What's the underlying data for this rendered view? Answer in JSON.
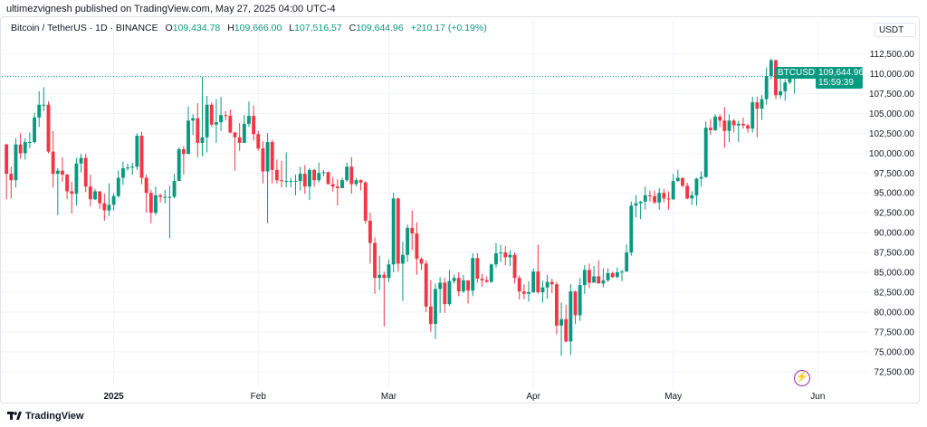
{
  "publisher": "ultimezvignesh published on TradingView.com, May 27, 2025 04:00 UTC-4",
  "legend": {
    "symbol": "Bitcoin / TetherUS · 1D · BINANCE",
    "o_label": "O",
    "o": "109,434.78",
    "h_label": "H",
    "h": "109,666.00",
    "l_label": "L",
    "l": "107,516.57",
    "c_label": "C",
    "c": "109,644.96",
    "change": "+210.17 (+0.19%)"
  },
  "currency": "USDT",
  "last_price": {
    "symbol": "BTCUSDT",
    "price": "109,644.96",
    "countdown": "15:59:39",
    "value": 109644.96
  },
  "logo": "TradingView",
  "icons": {
    "alert": "lightning-icon",
    "logo": "tradingview-logo-icon"
  },
  "colors": {
    "up": "#089981",
    "down": "#f23645",
    "grid": "#f0f3fa",
    "text": "#131722"
  },
  "chart_data": {
    "type": "candlestick",
    "grid": true,
    "ylim": [
      71000,
      114500
    ],
    "y_ticks": [
      "72,500.00",
      "75,000.00",
      "77,500.00",
      "80,000.00",
      "82,500.00",
      "85,000.00",
      "87,500.00",
      "90,000.00",
      "92,500.00",
      "95,000.00",
      "97,500.00",
      "100,000.00",
      "102,500.00",
      "105,000.00",
      "107,500.00",
      "110,000.00",
      "112,500.00"
    ],
    "x_ticks": [
      {
        "label": "2025",
        "date": "2025-01-01",
        "bold": true
      },
      {
        "label": "Feb",
        "date": "2025-02-01"
      },
      {
        "label": "Mar",
        "date": "2025-03-01"
      },
      {
        "label": "Apr",
        "date": "2025-04-01"
      },
      {
        "label": "May",
        "date": "2025-05-01"
      },
      {
        "label": "Jun",
        "date": "2025-06-01"
      }
    ],
    "xlim": [
      "2024-12-08",
      "2025-06-12"
    ],
    "columns": [
      "date",
      "open",
      "high",
      "low",
      "close"
    ],
    "ohlc": [
      [
        "2024-12-09",
        101100,
        101200,
        94200,
        97400
      ],
      [
        "2024-12-10",
        97400,
        98300,
        94300,
        96600
      ],
      [
        "2024-12-11",
        96600,
        101900,
        95700,
        101100
      ],
      [
        "2024-12-12",
        101100,
        102500,
        99300,
        100000
      ],
      [
        "2024-12-13",
        100000,
        101900,
        99200,
        101400
      ],
      [
        "2024-12-14",
        101400,
        102600,
        100600,
        101400
      ],
      [
        "2024-12-15",
        101400,
        105100,
        101200,
        104500
      ],
      [
        "2024-12-16",
        104500,
        107800,
        103300,
        106100
      ],
      [
        "2024-12-17",
        106100,
        108300,
        105300,
        106100
      ],
      [
        "2024-12-18",
        106100,
        106500,
        100000,
        100200
      ],
      [
        "2024-12-19",
        100200,
        102800,
        95700,
        97400
      ],
      [
        "2024-12-20",
        97400,
        98100,
        92200,
        97800
      ],
      [
        "2024-12-21",
        97800,
        99500,
        96400,
        97300
      ],
      [
        "2024-12-22",
        97300,
        97400,
        94200,
        95200
      ],
      [
        "2024-12-23",
        95200,
        96400,
        92400,
        94900
      ],
      [
        "2024-12-24",
        94900,
        99400,
        93400,
        98700
      ],
      [
        "2024-12-25",
        98700,
        99900,
        97600,
        99400
      ],
      [
        "2024-12-26",
        99400,
        99900,
        95100,
        95800
      ],
      [
        "2024-12-27",
        95800,
        97300,
        93300,
        94200
      ],
      [
        "2024-12-28",
        94200,
        95500,
        94100,
        95200
      ],
      [
        "2024-12-29",
        95200,
        95200,
        93000,
        93700
      ],
      [
        "2024-12-30",
        93700,
        94900,
        91500,
        92800
      ],
      [
        "2024-12-31",
        92800,
        96200,
        92100,
        93500
      ],
      [
        "2025-01-01",
        93500,
        95000,
        92800,
        94600
      ],
      [
        "2025-01-02",
        94600,
        97800,
        94400,
        96900
      ],
      [
        "2025-01-03",
        96900,
        98900,
        96000,
        98100
      ],
      [
        "2025-01-04",
        98100,
        98700,
        97800,
        98200
      ],
      [
        "2025-01-05",
        98200,
        98800,
        97300,
        98300
      ],
      [
        "2025-01-06",
        98300,
        102500,
        97900,
        102200
      ],
      [
        "2025-01-07",
        102200,
        102700,
        96100,
        96900
      ],
      [
        "2025-01-08",
        96900,
        97300,
        92500,
        95000
      ],
      [
        "2025-01-09",
        95000,
        95400,
        91200,
        92500
      ],
      [
        "2025-01-10",
        92500,
        95800,
        92200,
        94700
      ],
      [
        "2025-01-11",
        94700,
        94900,
        93800,
        94500
      ],
      [
        "2025-01-12",
        94500,
        95400,
        93700,
        94500
      ],
      [
        "2025-01-13",
        94500,
        95900,
        89300,
        94500
      ],
      [
        "2025-01-14",
        94500,
        97400,
        94300,
        96500
      ],
      [
        "2025-01-15",
        96500,
        100700,
        96500,
        100500
      ],
      [
        "2025-01-16",
        100500,
        100900,
        97300,
        99900
      ],
      [
        "2025-01-17",
        99900,
        105900,
        99900,
        104100
      ],
      [
        "2025-01-18",
        104100,
        104900,
        102300,
        104400
      ],
      [
        "2025-01-19",
        104400,
        106300,
        99500,
        101300
      ],
      [
        "2025-01-20",
        101300,
        109600,
        99600,
        102000
      ],
      [
        "2025-01-21",
        102000,
        107200,
        100100,
        106100
      ],
      [
        "2025-01-22",
        106100,
        106400,
        103300,
        103600
      ],
      [
        "2025-01-23",
        103600,
        106800,
        101300,
        103900
      ],
      [
        "2025-01-24",
        103900,
        107100,
        102800,
        104800
      ],
      [
        "2025-01-25",
        104800,
        105300,
        104100,
        104700
      ],
      [
        "2025-01-26",
        104700,
        105500,
        102500,
        102600
      ],
      [
        "2025-01-27",
        102600,
        102700,
        97800,
        102000
      ],
      [
        "2025-01-28",
        102000,
        103800,
        100300,
        101300
      ],
      [
        "2025-01-29",
        101300,
        104800,
        101300,
        103700
      ],
      [
        "2025-01-30",
        103700,
        106500,
        103300,
        104700
      ],
      [
        "2025-01-31",
        104700,
        106000,
        101600,
        102400
      ],
      [
        "2025-02-01",
        102400,
        102800,
        100300,
        100600
      ],
      [
        "2025-02-02",
        100600,
        101500,
        96200,
        97700
      ],
      [
        "2025-02-03",
        97700,
        102500,
        91200,
        101400
      ],
      [
        "2025-02-04",
        101400,
        101700,
        96200,
        97900
      ],
      [
        "2025-02-05",
        97900,
        99200,
        96200,
        96600
      ],
      [
        "2025-02-06",
        96600,
        99000,
        95700,
        96500
      ],
      [
        "2025-02-07",
        96500,
        100100,
        95700,
        96500
      ],
      [
        "2025-02-08",
        96500,
        96900,
        95700,
        96500
      ],
      [
        "2025-02-09",
        96500,
        97300,
        94700,
        96500
      ],
      [
        "2025-02-10",
        96500,
        98300,
        95300,
        97400
      ],
      [
        "2025-02-11",
        97400,
        98500,
        94900,
        95800
      ],
      [
        "2025-02-12",
        95800,
        98100,
        94100,
        97900
      ],
      [
        "2025-02-13",
        97900,
        98000,
        95800,
        96600
      ],
      [
        "2025-02-14",
        96600,
        98800,
        96300,
        97500
      ],
      [
        "2025-02-15",
        97500,
        97900,
        97100,
        97600
      ],
      [
        "2025-02-16",
        97600,
        97700,
        96100,
        96100
      ],
      [
        "2025-02-17",
        96100,
        97000,
        95200,
        95800
      ],
      [
        "2025-02-18",
        95800,
        96700,
        93400,
        95600
      ],
      [
        "2025-02-19",
        95600,
        96900,
        95600,
        96600
      ],
      [
        "2025-02-20",
        96600,
        98800,
        96400,
        98300
      ],
      [
        "2025-02-21",
        98300,
        99500,
        94900,
        96100
      ],
      [
        "2025-02-22",
        96100,
        96900,
        95800,
        96600
      ],
      [
        "2025-02-23",
        96600,
        96700,
        95300,
        96300
      ],
      [
        "2025-02-24",
        96300,
        96500,
        91100,
        91500
      ],
      [
        "2025-02-25",
        91500,
        92500,
        86100,
        88700
      ],
      [
        "2025-02-26",
        88700,
        89400,
        82300,
        84300
      ],
      [
        "2025-02-27",
        84300,
        87100,
        82800,
        84700
      ],
      [
        "2025-02-28",
        84700,
        85100,
        78200,
        84300
      ],
      [
        "2025-03-01",
        84300,
        86600,
        83800,
        86000
      ],
      [
        "2025-03-02",
        86000,
        95000,
        85000,
        94300
      ],
      [
        "2025-03-03",
        94300,
        94400,
        85100,
        86100
      ],
      [
        "2025-03-04",
        86100,
        88900,
        81400,
        87200
      ],
      [
        "2025-03-05",
        87200,
        91000,
        86300,
        90600
      ],
      [
        "2025-03-06",
        90600,
        92800,
        87800,
        89900
      ],
      [
        "2025-03-07",
        89900,
        91300,
        84700,
        86700
      ],
      [
        "2025-03-08",
        86700,
        86900,
        85300,
        86100
      ],
      [
        "2025-03-09",
        86100,
        86500,
        80000,
        80700
      ],
      [
        "2025-03-10",
        80700,
        84000,
        77500,
        78500
      ],
      [
        "2025-03-11",
        78500,
        83600,
        76600,
        82900
      ],
      [
        "2025-03-12",
        82900,
        84400,
        79900,
        83700
      ],
      [
        "2025-03-13",
        83700,
        84300,
        79900,
        81000
      ],
      [
        "2025-03-14",
        81000,
        85300,
        80800,
        83900
      ],
      [
        "2025-03-15",
        83900,
        84700,
        83600,
        84300
      ],
      [
        "2025-03-16",
        84300,
        85000,
        82000,
        82600
      ],
      [
        "2025-03-17",
        82600,
        84700,
        82400,
        84000
      ],
      [
        "2025-03-18",
        84000,
        84000,
        81100,
        82700
      ],
      [
        "2025-03-19",
        82700,
        87400,
        82000,
        86800
      ],
      [
        "2025-03-20",
        86800,
        87400,
        83700,
        84200
      ],
      [
        "2025-03-21",
        84200,
        84800,
        83200,
        84000
      ],
      [
        "2025-03-22",
        84000,
        84500,
        83700,
        83800
      ],
      [
        "2025-03-23",
        83800,
        86100,
        83700,
        86000
      ],
      [
        "2025-03-24",
        86000,
        88700,
        85600,
        87400
      ],
      [
        "2025-03-25",
        87400,
        88500,
        86300,
        87500
      ],
      [
        "2025-03-26",
        87500,
        88300,
        85900,
        86900
      ],
      [
        "2025-03-27",
        86900,
        87800,
        85800,
        87200
      ],
      [
        "2025-03-28",
        87200,
        87500,
        83600,
        84300
      ],
      [
        "2025-03-29",
        84300,
        84600,
        81600,
        82600
      ],
      [
        "2025-03-30",
        82600,
        83500,
        81600,
        82300
      ],
      [
        "2025-03-31",
        82300,
        83900,
        81300,
        82500
      ],
      [
        "2025-04-01",
        82500,
        85500,
        82400,
        85100
      ],
      [
        "2025-04-02",
        85100,
        88500,
        82300,
        82500
      ],
      [
        "2025-04-03",
        82500,
        83900,
        81200,
        83100
      ],
      [
        "2025-04-04",
        83100,
        84700,
        81700,
        83800
      ],
      [
        "2025-04-05",
        83800,
        84200,
        82400,
        83500
      ],
      [
        "2025-04-06",
        83500,
        83800,
        77200,
        78300
      ],
      [
        "2025-04-07",
        78300,
        81200,
        74500,
        79100
      ],
      [
        "2025-04-08",
        79100,
        80900,
        76200,
        76300
      ],
      [
        "2025-04-09",
        76300,
        83500,
        74600,
        82600
      ],
      [
        "2025-04-10",
        82600,
        82700,
        78500,
        79600
      ],
      [
        "2025-04-11",
        79600,
        84300,
        78900,
        83400
      ],
      [
        "2025-04-12",
        83400,
        85900,
        82300,
        85300
      ],
      [
        "2025-04-13",
        85300,
        86100,
        83000,
        83700
      ],
      [
        "2025-04-14",
        83700,
        85800,
        83700,
        84500
      ],
      [
        "2025-04-15",
        84500,
        86500,
        83600,
        83600
      ],
      [
        "2025-04-16",
        83600,
        85500,
        83100,
        84000
      ],
      [
        "2025-04-17",
        84000,
        85500,
        83800,
        84900
      ],
      [
        "2025-04-18",
        84900,
        85100,
        84300,
        84400
      ],
      [
        "2025-04-19",
        84400,
        85600,
        84300,
        85000
      ],
      [
        "2025-04-20",
        85000,
        85300,
        83900,
        85100
      ],
      [
        "2025-04-21",
        85100,
        88500,
        85100,
        87500
      ],
      [
        "2025-04-22",
        87500,
        93900,
        87100,
        93400
      ],
      [
        "2025-04-23",
        93400,
        94700,
        91900,
        93700
      ],
      [
        "2025-04-24",
        93700,
        94000,
        91700,
        93900
      ],
      [
        "2025-04-25",
        93900,
        95800,
        92900,
        94700
      ],
      [
        "2025-04-26",
        94700,
        95300,
        93900,
        94600
      ],
      [
        "2025-04-27",
        94600,
        95300,
        93600,
        93800
      ],
      [
        "2025-04-28",
        93800,
        95600,
        92900,
        95000
      ],
      [
        "2025-04-29",
        95000,
        95500,
        93800,
        94300
      ],
      [
        "2025-04-30",
        94300,
        95200,
        92900,
        94200
      ],
      [
        "2025-05-01",
        94200,
        97400,
        94100,
        96500
      ],
      [
        "2025-05-02",
        96500,
        97900,
        96400,
        96900
      ],
      [
        "2025-05-03",
        96900,
        96900,
        95700,
        95900
      ],
      [
        "2025-05-04",
        95900,
        96300,
        94200,
        94300
      ],
      [
        "2025-05-05",
        94300,
        95200,
        93500,
        94700
      ],
      [
        "2025-05-06",
        94700,
        96900,
        93400,
        96800
      ],
      [
        "2025-05-07",
        96800,
        97700,
        95800,
        97000
      ],
      [
        "2025-05-08",
        97000,
        104000,
        96900,
        103200
      ],
      [
        "2025-05-09",
        103200,
        104300,
        102300,
        102900
      ],
      [
        "2025-05-10",
        102900,
        104900,
        102800,
        104600
      ],
      [
        "2025-05-11",
        104600,
        104900,
        103300,
        104100
      ],
      [
        "2025-05-12",
        104100,
        105800,
        100700,
        102800
      ],
      [
        "2025-05-13",
        102800,
        104900,
        101400,
        104100
      ],
      [
        "2025-05-14",
        104100,
        104300,
        102600,
        103500
      ],
      [
        "2025-05-15",
        103500,
        104100,
        101400,
        103700
      ],
      [
        "2025-05-16",
        103700,
        104500,
        103100,
        103500
      ],
      [
        "2025-05-17",
        103500,
        103700,
        102600,
        103100
      ],
      [
        "2025-05-18",
        103100,
        107100,
        102600,
        106400
      ],
      [
        "2025-05-19",
        106400,
        107100,
        102000,
        105600
      ],
      [
        "2025-05-20",
        105600,
        107300,
        104200,
        106800
      ],
      [
        "2025-05-21",
        106800,
        110800,
        106100,
        109700
      ],
      [
        "2025-05-22",
        109700,
        111900,
        109300,
        111700
      ],
      [
        "2025-05-23",
        111700,
        111800,
        106800,
        107300
      ],
      [
        "2025-05-24",
        107300,
        109500,
        106900,
        107800
      ],
      [
        "2025-05-25",
        107800,
        109300,
        106600,
        108900
      ],
      [
        "2025-05-26",
        108900,
        110400,
        108700,
        109400
      ],
      [
        "2025-05-27",
        109434.78,
        109666,
        107516.57,
        109644.96
      ]
    ]
  }
}
